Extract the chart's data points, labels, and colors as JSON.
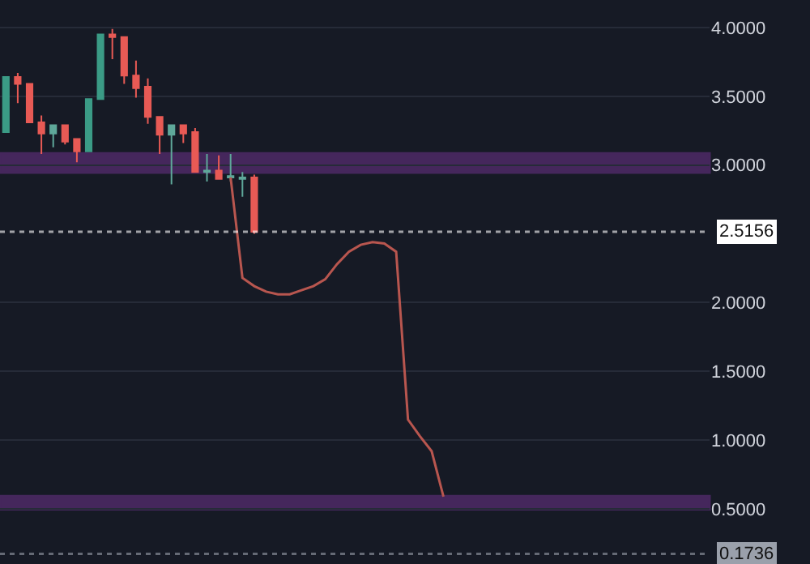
{
  "chart_data": {
    "type": "candlestick",
    "categories": [
      null,
      null,
      null,
      null,
      null,
      null,
      null,
      null,
      null,
      null,
      null,
      null,
      null,
      null,
      null,
      null,
      null,
      null,
      null,
      null,
      null,
      null,
      null,
      null,
      null,
      null,
      null,
      null,
      null,
      null,
      null,
      null,
      null,
      null,
      null,
      null,
      null,
      null,
      null,
      null,
      null,
      null,
      null,
      null,
      null,
      null,
      null,
      null,
      null,
      null,
      null,
      null,
      null,
      null,
      null,
      null,
      null,
      null,
      null,
      null
    ],
    "ohlc": [
      [
        3.24,
        3.64,
        3.24,
        3.64
      ],
      [
        3.64,
        3.67,
        3.45,
        3.59
      ],
      [
        3.59,
        3.59,
        3.31,
        3.31
      ],
      [
        3.31,
        3.36,
        3.08,
        3.23
      ],
      [
        3.23,
        3.29,
        3.13,
        3.29
      ],
      [
        3.29,
        3.29,
        3.15,
        3.17
      ],
      [
        3.19,
        3.19,
        3.02,
        3.1
      ],
      [
        3.1,
        3.48,
        3.1,
        3.48
      ],
      [
        3.48,
        3.95,
        3.48,
        3.95
      ],
      [
        3.95,
        3.99,
        3.77,
        3.93
      ],
      [
        3.93,
        3.93,
        3.59,
        3.65
      ],
      [
        3.65,
        3.76,
        3.49,
        3.56
      ],
      [
        3.57,
        3.63,
        3.3,
        3.35
      ],
      [
        3.35,
        3.35,
        3.08,
        3.22
      ],
      [
        3.22,
        3.29,
        2.86,
        3.29
      ],
      [
        3.29,
        3.29,
        3.16,
        3.23
      ],
      [
        3.24,
        3.27,
        2.95,
        2.95
      ],
      [
        2.95,
        3.08,
        2.88,
        2.96
      ],
      [
        2.96,
        3.07,
        2.9,
        2.9
      ],
      [
        2.92,
        3.08,
        2.88,
        2.91
      ],
      [
        2.9,
        2.95,
        2.77,
        2.91
      ],
      [
        2.91,
        2.93,
        2.5,
        2.5156
      ],
      null,
      null,
      null,
      null,
      null,
      null,
      null,
      null,
      null,
      null,
      null,
      null,
      null,
      null,
      null,
      null,
      null,
      null,
      null,
      null,
      null,
      null,
      null,
      null,
      null,
      null,
      null,
      null,
      null,
      null,
      null,
      null,
      null,
      null,
      null,
      null,
      null,
      null
    ],
    "colors": [
      "#3b9b86",
      "#e85a55",
      "#e85a55",
      "#e85a55",
      "#5fa89a",
      "#e85a55",
      "#e85a55",
      "#3b9b86",
      "#3b9b86",
      "#e85a55",
      "#e85a55",
      "#e85a55",
      "#e85a55",
      "#e85a55",
      "#5fa89a",
      "#e85a55",
      "#e85a55",
      "#5fa89a",
      "#e85a55",
      "#5fa89a",
      "#5fa89a",
      "#e85a55",
      null,
      null,
      null,
      null,
      null,
      null,
      null,
      null,
      null,
      null,
      null,
      null,
      null,
      null,
      null,
      null,
      null,
      null,
      null,
      null,
      null,
      null,
      null,
      null,
      null,
      null,
      null,
      null,
      null,
      null,
      null,
      null,
      null,
      null,
      null,
      null,
      null,
      null
    ],
    "series": [
      {
        "type": "line",
        "color": "#b8564f",
        "values": [
          null,
          null,
          null,
          null,
          null,
          null,
          null,
          null,
          null,
          null,
          null,
          null,
          null,
          null,
          null,
          null,
          null,
          null,
          null,
          2.91,
          2.18,
          2.12,
          2.08,
          2.06,
          2.06,
          2.09,
          2.12,
          2.17,
          2.28,
          2.37,
          2.42,
          2.44,
          2.43,
          2.37,
          1.15,
          1.03,
          0.92,
          0.59,
          null,
          null,
          null,
          null,
          null,
          null,
          null,
          null,
          null,
          null,
          null,
          null,
          null,
          null,
          null,
          null,
          null,
          null,
          null,
          null,
          null,
          null
        ]
      }
    ],
    "bands": [
      {
        "axis": "y",
        "from": 2.945,
        "to": 3.085,
        "color": "#9c3fc4"
      },
      {
        "axis": "y",
        "from": 0.497,
        "to": 0.593,
        "color": "#9c3fc4"
      }
    ],
    "ref_lines": [
      {
        "axis": "y",
        "value": 2.5156,
        "label": "2.5156",
        "color": "#ffffff",
        "line_style": "dotted"
      },
      {
        "axis": "y",
        "value": 0.1736,
        "label": "0.1736",
        "color": "#9aa0ab",
        "line_style": "dotted"
      }
    ],
    "ylim": [
      0.1,
      4.2
    ],
    "yticks": [
      {
        "value": 0.5,
        "label": "0.5000"
      },
      {
        "value": 1.0,
        "label": "1.0000"
      },
      {
        "value": 1.5,
        "label": "1.5000"
      },
      {
        "value": 2.0,
        "label": "2.0000"
      },
      {
        "value": 3.0,
        "label": "3.0000"
      },
      {
        "value": 3.5,
        "label": "3.5000"
      },
      {
        "value": 4.0,
        "label": "4.0000"
      }
    ],
    "tick_labels": "y",
    "grid": true
  }
}
